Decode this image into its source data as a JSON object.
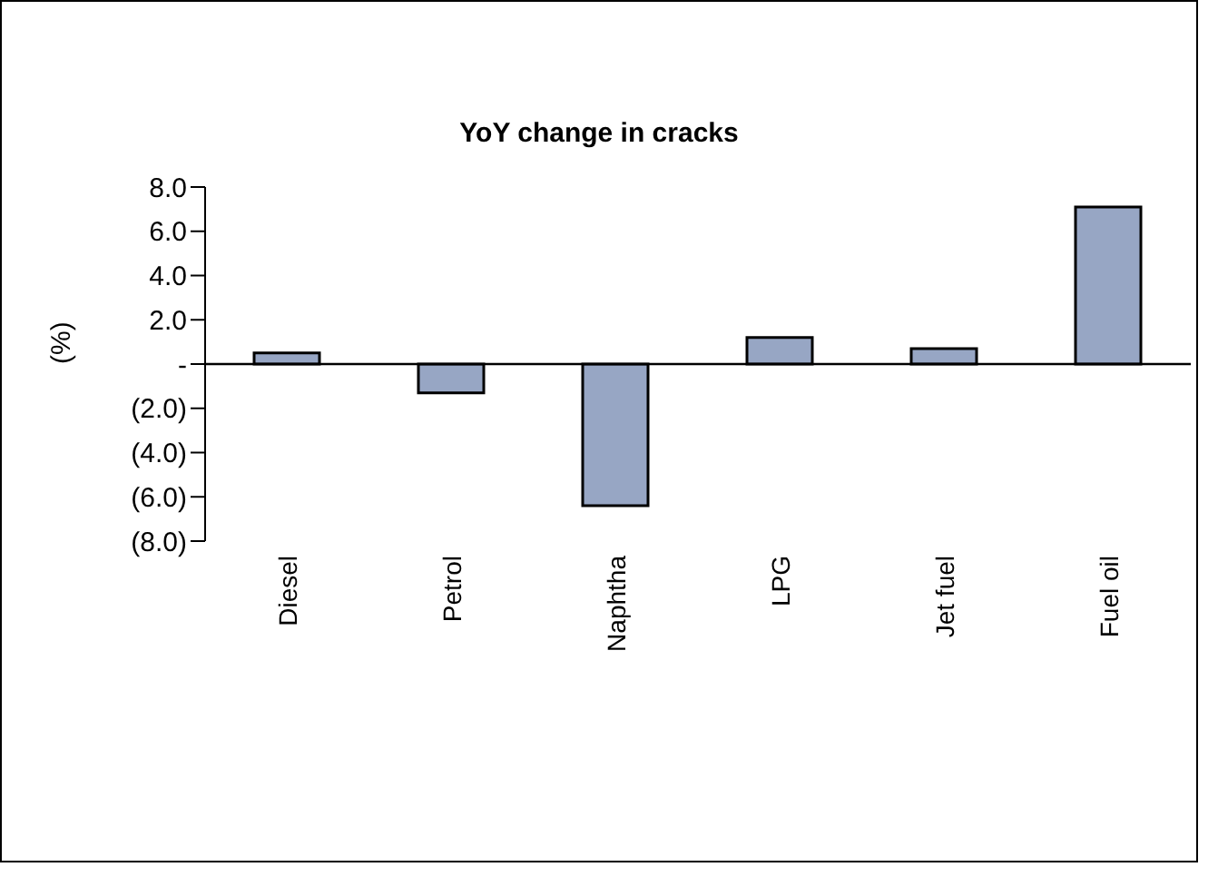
{
  "chart_data": {
    "type": "bar",
    "title": "YoY change in cracks",
    "ylabel": "(%)",
    "categories": [
      "Diesel",
      "Petrol",
      "Naphtha",
      "LPG",
      "Jet fuel",
      "Fuel oil"
    ],
    "values": [
      0.5,
      -1.3,
      -6.4,
      1.2,
      0.7,
      7.1
    ],
    "color": "#97a6c4",
    "ylim": [
      -8,
      8
    ],
    "yticks": [
      {
        "value": -8,
        "label": "(8.0)"
      },
      {
        "value": -6,
        "label": "(6.0)"
      },
      {
        "value": -4,
        "label": "(4.0)"
      },
      {
        "value": -2,
        "label": "(2.0)"
      },
      {
        "value": 0,
        "label": "-"
      },
      {
        "value": 2,
        "label": "2.0"
      },
      {
        "value": 4,
        "label": "4.0"
      },
      {
        "value": 6,
        "label": "6.0"
      },
      {
        "value": 8,
        "label": "8.0"
      }
    ],
    "legend": false
  }
}
